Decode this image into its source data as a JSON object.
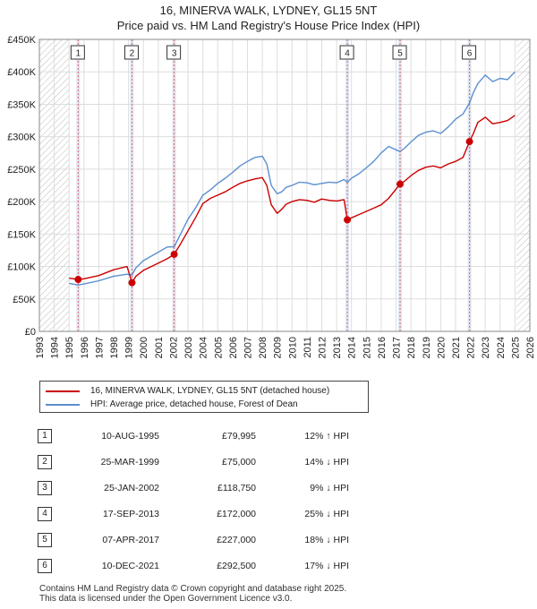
{
  "header": {
    "title": "16, MINERVA WALK, LYDNEY, GL15 5NT",
    "subtitle": "Price paid vs. HM Land Registry's House Price Index (HPI)"
  },
  "chart_data": {
    "type": "line",
    "x_ticks": [
      "1993",
      "1994",
      "1995",
      "1996",
      "1997",
      "1998",
      "1999",
      "2000",
      "2001",
      "2002",
      "2003",
      "2004",
      "2005",
      "2006",
      "2007",
      "2008",
      "2009",
      "2010",
      "2011",
      "2012",
      "2013",
      "2014",
      "2015",
      "2016",
      "2017",
      "2018",
      "2019",
      "2020",
      "2021",
      "2022",
      "2023",
      "2024",
      "2025",
      "2026"
    ],
    "y_ticks": [
      "£0",
      "£50K",
      "£100K",
      "£150K",
      "£200K",
      "£250K",
      "£300K",
      "£350K",
      "£400K",
      "£450K"
    ],
    "xlim": [
      1993,
      2026
    ],
    "ylim": [
      0,
      450000
    ],
    "grid": true,
    "data_range_hatched_before": 1995.0,
    "data_range_hatched_after": 2025.1,
    "colors": {
      "property": "#cc0000",
      "hpi": "#5b8fd0",
      "sale_shade": "#dde6f6",
      "marker_line": "#e06666"
    },
    "series": [
      {
        "name": "16, MINERVA WALK, LYDNEY, GL15 5NT (detached house)",
        "color": "#cc0000",
        "x": [
          1995.0,
          1995.61,
          1996.0,
          1997.0,
          1998.0,
          1998.9,
          1999.23,
          1999.5,
          2000.0,
          2001.0,
          2001.6,
          2002.07,
          2002.5,
          2003.0,
          2003.5,
          2004.0,
          2004.5,
          2005.0,
          2005.5,
          2006.0,
          2006.5,
          2007.0,
          2007.5,
          2008.0,
          2008.3,
          2008.6,
          2009.0,
          2009.3,
          2009.6,
          2010.0,
          2010.5,
          2011.0,
          2011.5,
          2012.0,
          2012.5,
          2013.0,
          2013.5,
          2013.72,
          2014.0,
          2014.5,
          2015.0,
          2015.5,
          2016.0,
          2016.5,
          2017.27,
          2017.6,
          2018.0,
          2018.5,
          2019.0,
          2019.5,
          2020.0,
          2020.5,
          2021.0,
          2021.5,
          2021.94,
          2022.2,
          2022.5,
          2023.0,
          2023.5,
          2024.0,
          2024.5,
          2025.0
        ],
        "values": [
          82000,
          79995,
          81000,
          86000,
          95000,
          100000,
          75000,
          85000,
          94000,
          105000,
          112000,
          118750,
          135000,
          155000,
          175000,
          197000,
          205000,
          210000,
          215000,
          222000,
          228000,
          232000,
          235000,
          237000,
          225000,
          195000,
          182000,
          188000,
          196000,
          200000,
          203000,
          202000,
          199000,
          204000,
          202000,
          201000,
          203000,
          172000,
          175000,
          180000,
          185000,
          190000,
          195000,
          205000,
          227000,
          232000,
          240000,
          248000,
          253000,
          255000,
          252000,
          258000,
          262000,
          268000,
          292500,
          305000,
          322000,
          330000,
          320000,
          322000,
          325000,
          333000
        ]
      },
      {
        "name": "HPI: Average price, detached house, Forest of Dean",
        "color": "#5b8fd0",
        "x": [
          1995.0,
          1995.61,
          1996.0,
          1997.0,
          1998.0,
          1998.9,
          1999.23,
          1999.5,
          2000.0,
          2001.0,
          2001.6,
          2002.07,
          2002.5,
          2003.0,
          2003.5,
          2004.0,
          2004.5,
          2005.0,
          2005.5,
          2006.0,
          2006.5,
          2007.0,
          2007.5,
          2008.0,
          2008.3,
          2008.6,
          2009.0,
          2009.3,
          2009.6,
          2010.0,
          2010.5,
          2011.0,
          2011.5,
          2012.0,
          2012.5,
          2013.0,
          2013.5,
          2013.72,
          2014.0,
          2014.5,
          2015.0,
          2015.5,
          2016.0,
          2016.5,
          2017.27,
          2017.6,
          2018.0,
          2018.5,
          2019.0,
          2019.5,
          2020.0,
          2020.5,
          2021.0,
          2021.5,
          2021.94,
          2022.2,
          2022.5,
          2023.0,
          2023.5,
          2024.0,
          2024.5,
          2025.0
        ],
        "values": [
          74000,
          71500,
          73000,
          78000,
          85000,
          88000,
          87000,
          98000,
          109000,
          122000,
          130000,
          130500,
          150000,
          173000,
          190000,
          210000,
          218000,
          228000,
          236000,
          245000,
          255000,
          262000,
          268000,
          270000,
          258000,
          225000,
          212000,
          215000,
          222000,
          225000,
          230000,
          229000,
          226000,
          228000,
          230000,
          229000,
          234000,
          229500,
          236000,
          243000,
          252000,
          262000,
          275000,
          285000,
          277000,
          283000,
          292000,
          302000,
          307000,
          309000,
          305000,
          315000,
          327000,
          335000,
          352000,
          368000,
          382000,
          395000,
          385000,
          390000,
          388000,
          400000
        ]
      }
    ],
    "sale_markers": [
      {
        "label": "1",
        "x": 1995.61,
        "y": 79995
      },
      {
        "label": "2",
        "x": 1999.23,
        "y": 75000
      },
      {
        "label": "3",
        "x": 2002.07,
        "y": 118750
      },
      {
        "label": "4",
        "x": 2013.72,
        "y": 172000
      },
      {
        "label": "5",
        "x": 2017.27,
        "y": 227000
      },
      {
        "label": "6",
        "x": 2021.94,
        "y": 292500
      }
    ]
  },
  "legend": {
    "property_label": "16, MINERVA WALK, LYDNEY, GL15 5NT (detached house)",
    "hpi_label": "HPI: Average price, detached house, Forest of Dean"
  },
  "sales": [
    {
      "num": "1",
      "date": "10-AUG-1995",
      "price": "£79,995",
      "hpi": "12% ↑ HPI"
    },
    {
      "num": "2",
      "date": "25-MAR-1999",
      "price": "£75,000",
      "hpi": "14% ↓ HPI"
    },
    {
      "num": "3",
      "date": "25-JAN-2002",
      "price": "£118,750",
      "hpi": "9% ↓ HPI"
    },
    {
      "num": "4",
      "date": "17-SEP-2013",
      "price": "£172,000",
      "hpi": "25% ↓ HPI"
    },
    {
      "num": "5",
      "date": "07-APR-2017",
      "price": "£227,000",
      "hpi": "18% ↓ HPI"
    },
    {
      "num": "6",
      "date": "10-DEC-2021",
      "price": "£292,500",
      "hpi": "17% ↓ HPI"
    }
  ],
  "footer": {
    "line1": "Contains HM Land Registry data © Crown copyright and database right 2025.",
    "line2": "This data is licensed under the Open Government Licence v3.0."
  }
}
